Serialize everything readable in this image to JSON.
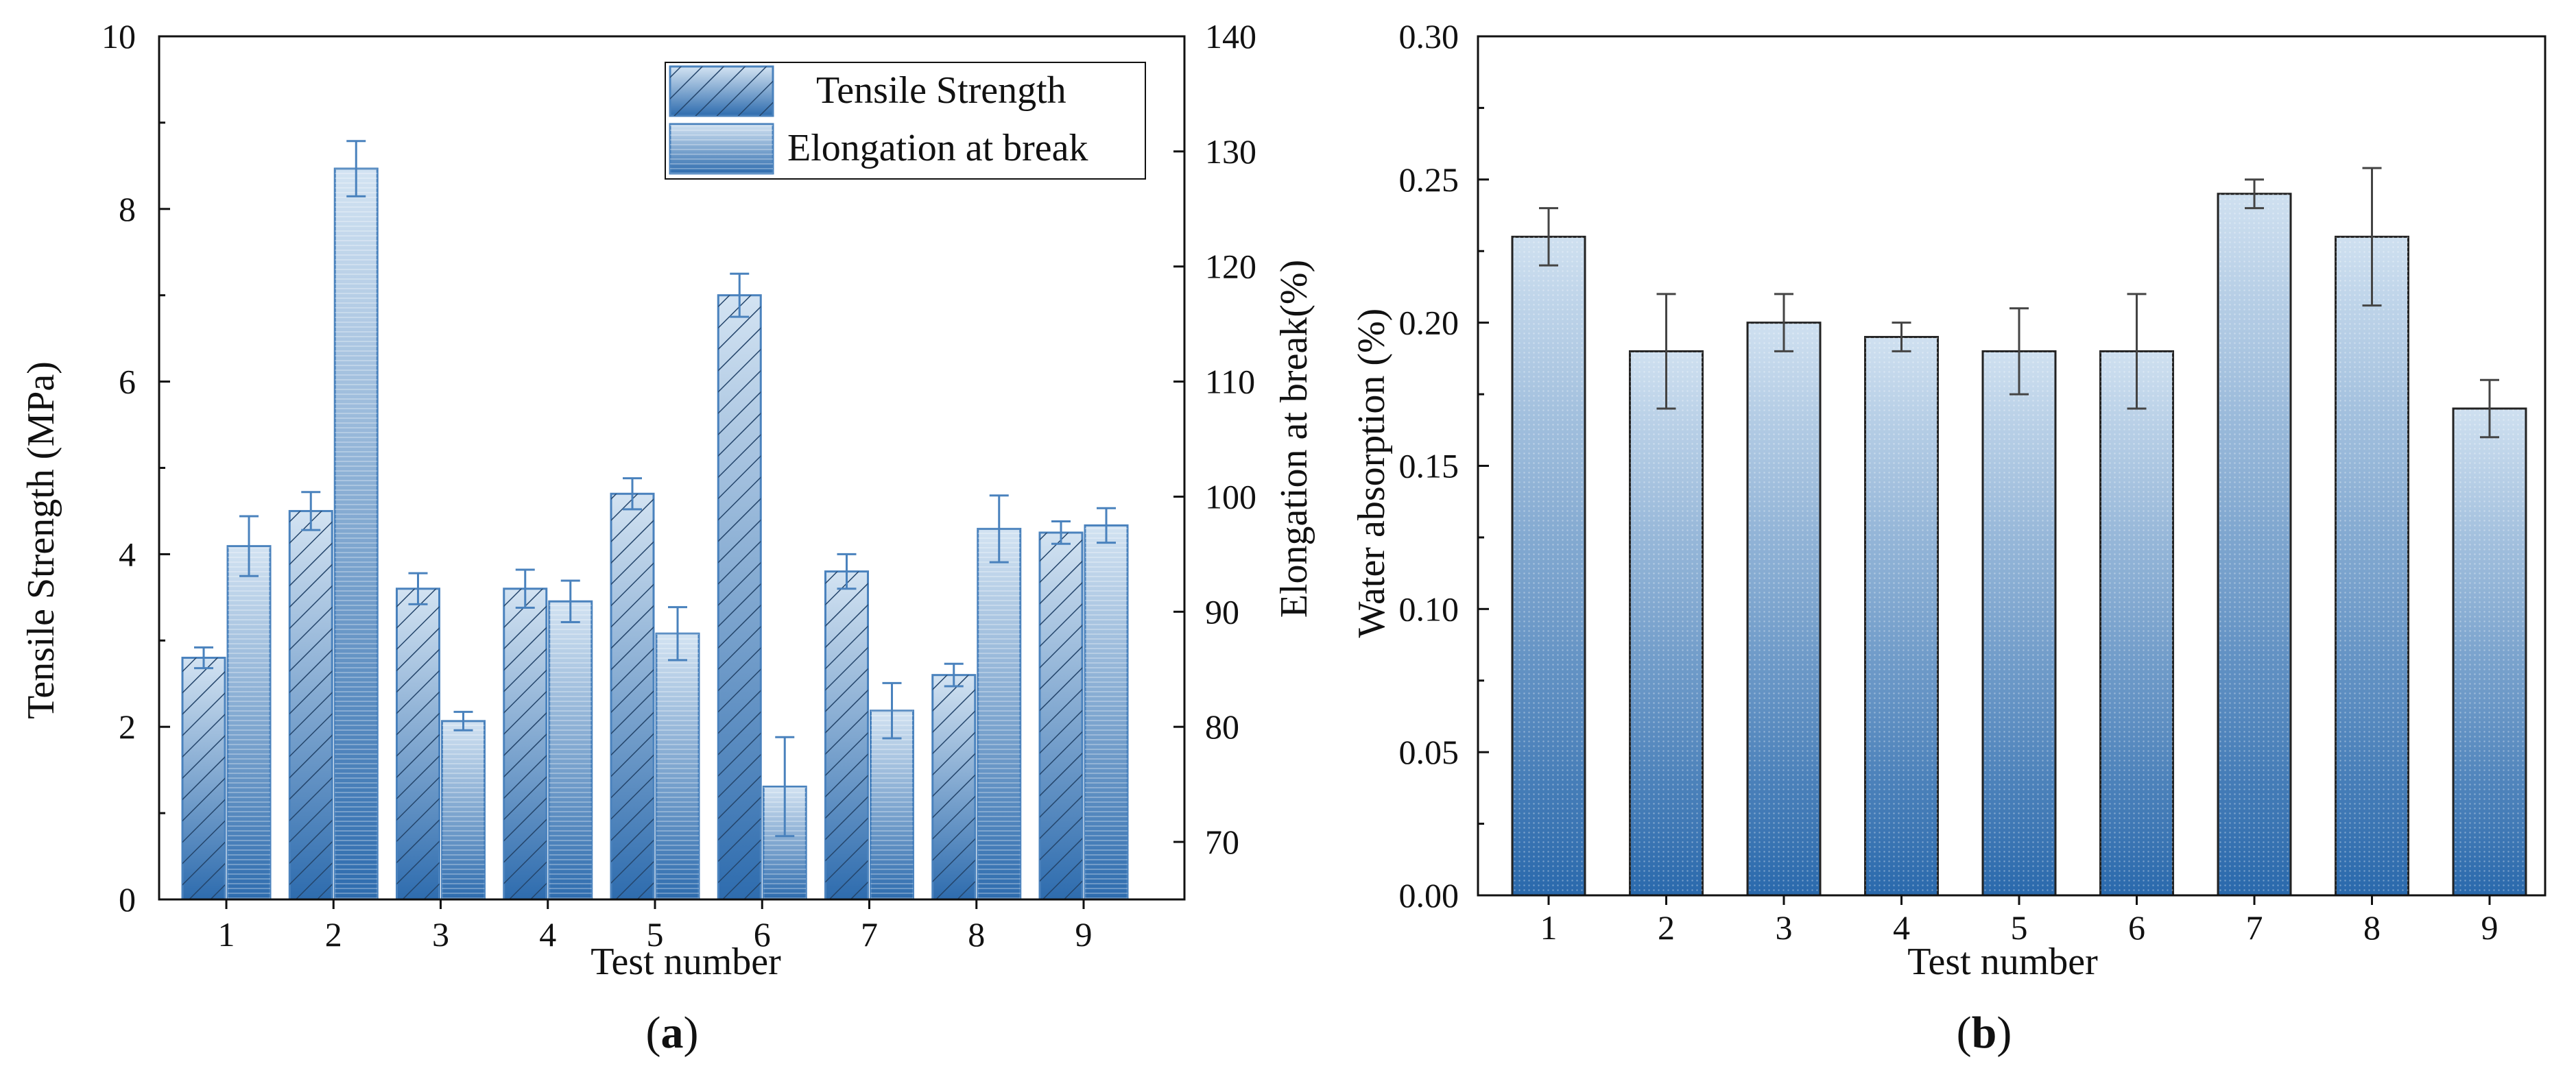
{
  "chart_data": [
    {
      "type": "bar",
      "panel_label": "a",
      "xlabel": "Test number",
      "categories": [
        "1",
        "2",
        "3",
        "4",
        "5",
        "6",
        "7",
        "8",
        "9"
      ],
      "y_left": {
        "label": "Tensile Strength (MPa)",
        "lim": [
          0,
          10
        ],
        "ticks": [
          "0",
          "2",
          "4",
          "6",
          "8",
          "10"
        ]
      },
      "y_right": {
        "label": "Elongation at break(%)",
        "lim": [
          65,
          140
        ],
        "ticks": [
          "70",
          "80",
          "90",
          "100",
          "110",
          "120",
          "130",
          "140"
        ]
      },
      "series": [
        {
          "name": "Tensile Strength",
          "axis": "left",
          "style": "hatched",
          "values": [
            2.8,
            4.5,
            3.6,
            3.6,
            4.7,
            7.0,
            3.8,
            2.6,
            4.25
          ],
          "errors": [
            0.12,
            0.22,
            0.18,
            0.22,
            0.18,
            0.25,
            0.2,
            0.13,
            0.13
          ]
        },
        {
          "name": "Elongation at break",
          "axis": "right",
          "style": "gradient",
          "values": [
            95.7,
            128.5,
            80.5,
            90.9,
            88.1,
            74.8,
            81.4,
            97.2,
            97.5
          ],
          "errors": [
            2.6,
            2.4,
            0.8,
            1.8,
            2.3,
            4.3,
            2.4,
            2.9,
            1.5
          ]
        }
      ],
      "legend": "top-right"
    },
    {
      "type": "bar",
      "panel_label": "b",
      "xlabel": "Test number",
      "ylabel": "Water absorption (%)",
      "categories": [
        "1",
        "2",
        "3",
        "4",
        "5",
        "6",
        "7",
        "8",
        "9"
      ],
      "ylim": [
        0,
        0.3
      ],
      "yticks": [
        "0.00",
        "0.05",
        "0.10",
        "0.15",
        "0.20",
        "0.25",
        "0.30"
      ],
      "values": [
        0.23,
        0.19,
        0.2,
        0.195,
        0.19,
        0.19,
        0.245,
        0.23,
        0.17
      ],
      "errors": [
        0.01,
        0.02,
        0.01,
        0.005,
        0.015,
        0.02,
        0.005,
        0.024,
        0.01
      ]
    }
  ],
  "colors": {
    "bar_dark": "#2f6fb0",
    "bar_light": "#c6dcef",
    "outline": "#4a82bd",
    "axis": "#111111"
  }
}
